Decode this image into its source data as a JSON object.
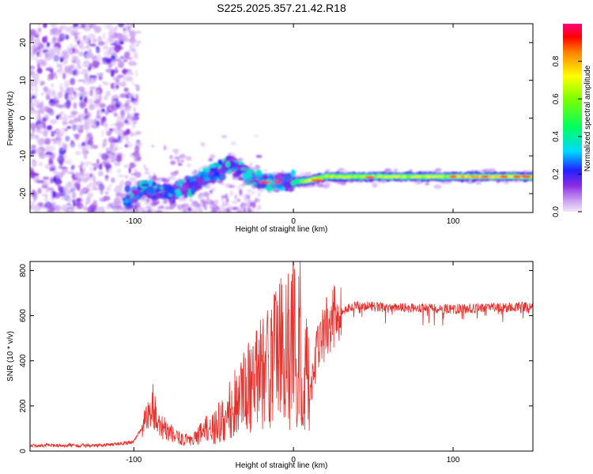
{
  "title": "S225.2025.357.21.42.R18",
  "chart_data": [
    {
      "type": "heatmap",
      "xlabel": "Height of straight line (km)",
      "ylabel": "Frequency (Hz)",
      "xlim": [
        -165,
        150
      ],
      "ylim": [
        -25,
        25
      ],
      "xticks": [
        -100,
        0,
        100
      ],
      "yticks": [
        -20,
        -10,
        0,
        10,
        20
      ],
      "ridge": {
        "x": [
          -105,
          -95,
          -85,
          -75,
          -65,
          -55,
          -45,
          -38,
          -30,
          -20,
          -10,
          0,
          10,
          20,
          40,
          60,
          80,
          100,
          120,
          150
        ],
        "y": [
          -22,
          -19,
          -19,
          -20,
          -18,
          -16,
          -13,
          -12,
          -15,
          -17,
          -17,
          -17,
          -16.5,
          -15.5,
          -15.5,
          -15.5,
          -15.5,
          -15.5,
          -15.5,
          -15.5
        ]
      },
      "colorbar": {
        "label": "Normalized spectral amplitude",
        "range": [
          0,
          1
        ],
        "ticks": [
          "0.0",
          "0.2",
          "0.4",
          "0.6",
          "0.8"
        ]
      }
    },
    {
      "type": "line",
      "xlabel": "Height of straight line (km)",
      "ylabel": "SNR (10 * v/v)",
      "xlim": [
        -165,
        150
      ],
      "ylim": [
        0,
        840
      ],
      "xticks": [
        -100,
        0,
        100
      ],
      "yticks": [
        0,
        200,
        400,
        600,
        800
      ],
      "series": [
        {
          "name": "SNR",
          "color": "#e8302c",
          "x": [
            -165,
            -120,
            -100,
            -92,
            -88,
            -85,
            -80,
            -72,
            -65,
            -60,
            -55,
            -50,
            -45,
            -40,
            -35,
            -30,
            -25,
            -20,
            -15,
            -10,
            -8,
            -6,
            -4,
            -2,
            0,
            2,
            4,
            6,
            8,
            10,
            15,
            20,
            25,
            30,
            40,
            60,
            100,
            150
          ],
          "y": [
            25,
            25,
            40,
            140,
            200,
            150,
            90,
            60,
            50,
            60,
            90,
            100,
            140,
            180,
            230,
            280,
            300,
            340,
            380,
            420,
            450,
            380,
            640,
            300,
            730,
            120,
            620,
            100,
            420,
            240,
            450,
            540,
            600,
            620,
            645,
            635,
            630,
            640
          ]
        }
      ]
    }
  ]
}
